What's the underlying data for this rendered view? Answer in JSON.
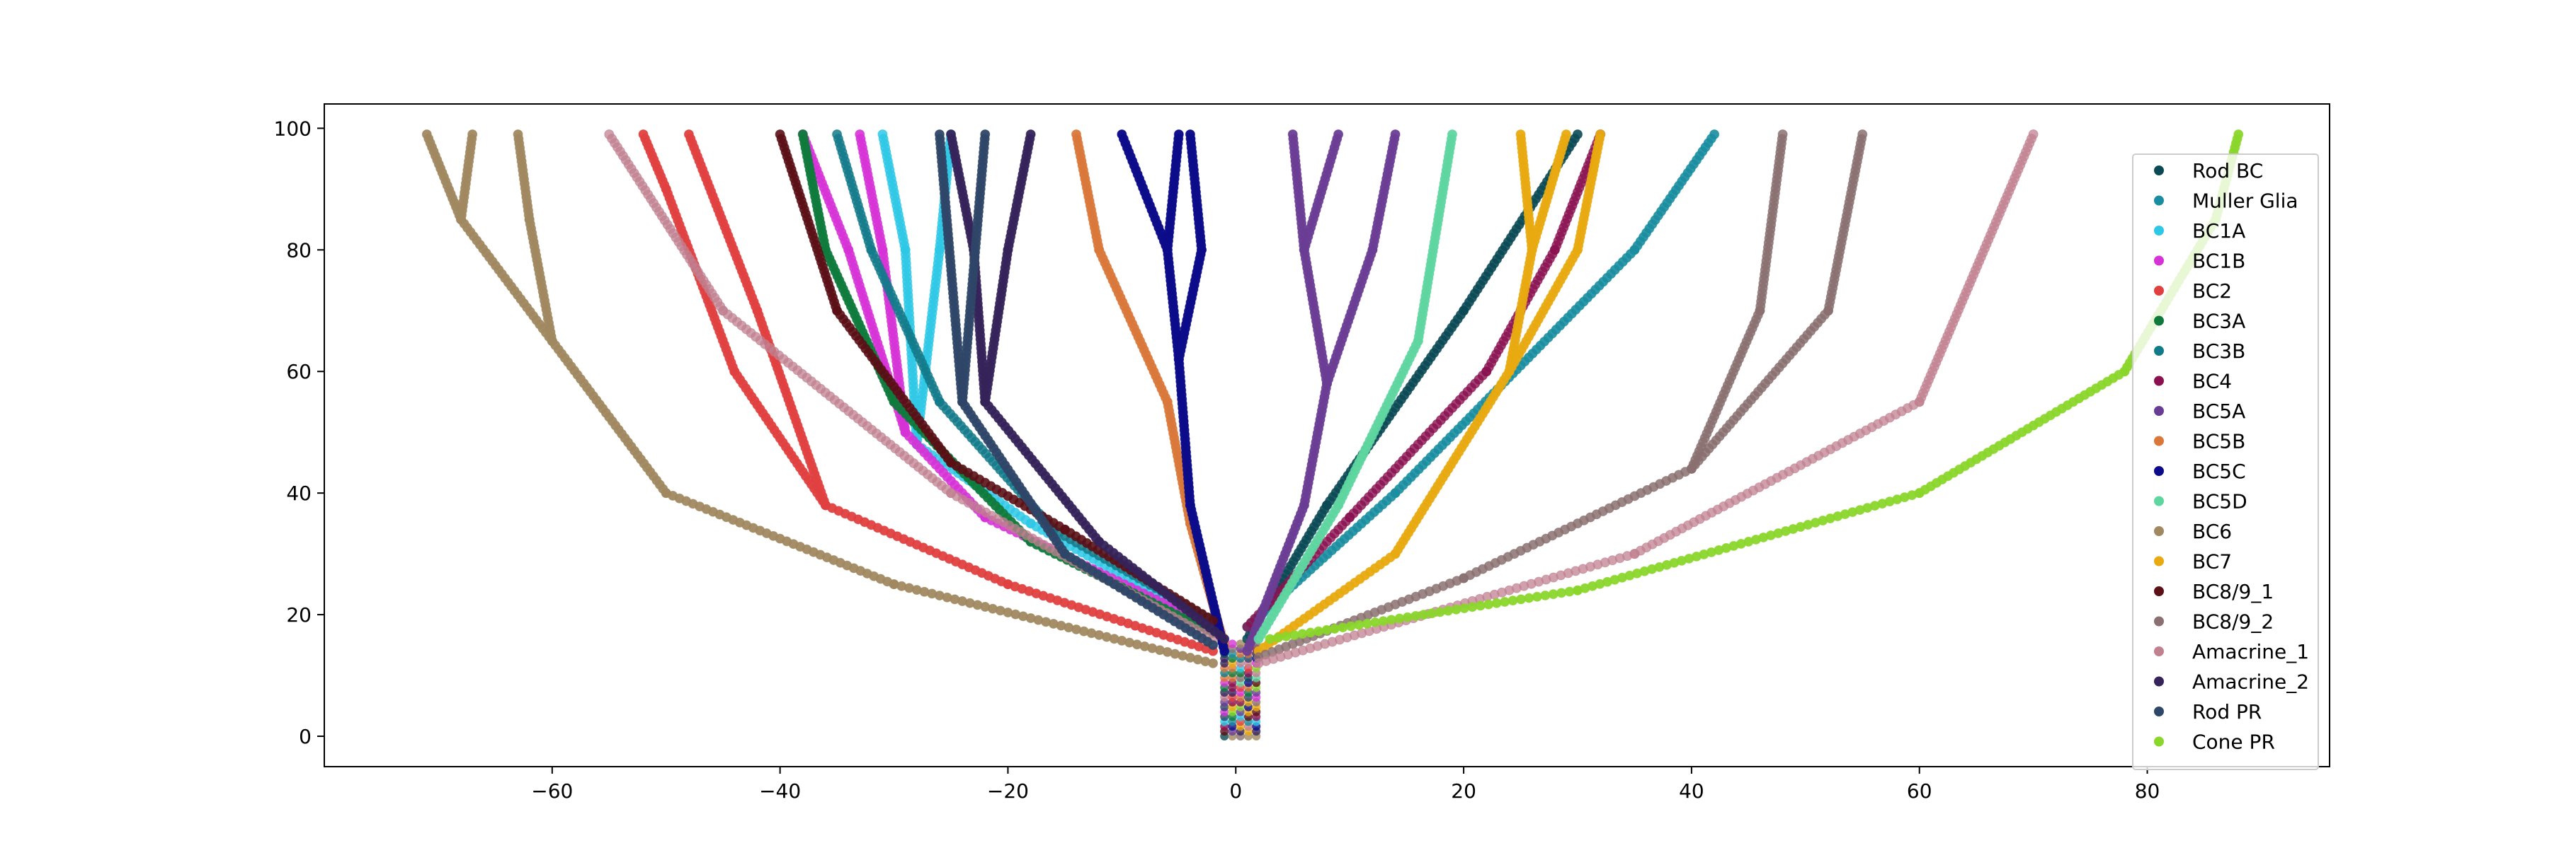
{
  "chart_data": {
    "type": "scatter",
    "title": "",
    "xlabel": "",
    "ylabel": "",
    "xlim": [
      -80,
      96
    ],
    "ylim": [
      -5,
      104
    ],
    "xticks": [
      -60,
      -40,
      -20,
      0,
      20,
      40,
      60,
      80
    ],
    "yticks": [
      0,
      20,
      40,
      60,
      80,
      100
    ],
    "xtick_labels": [
      "−60",
      "−40",
      "−20",
      "0",
      "20",
      "40",
      "60",
      "80"
    ],
    "ytick_labels": [
      "0",
      "20",
      "40",
      "60",
      "80",
      "100"
    ],
    "grid": false,
    "legend_position": "right",
    "trunk": {
      "x_from": -1,
      "x_to": 2,
      "y_from": 0,
      "y_to": 16
    },
    "series": [
      {
        "name": "Rod BC",
        "color": "#0b4a55",
        "alpha": 0.9,
        "branches": [
          [
            [
              1,
              16
            ],
            [
              8,
              38
            ],
            [
              20,
              70
            ],
            [
              30,
              99
            ]
          ]
        ]
      },
      {
        "name": "Muller Glia",
        "color": "#1a8ea0",
        "alpha": 0.9,
        "branches": [
          [
            [
              1,
              18
            ],
            [
              14,
              40
            ],
            [
              35,
              80
            ],
            [
              42,
              99
            ]
          ]
        ]
      },
      {
        "name": "BC1A",
        "color": "#2ec8e6",
        "alpha": 0.85,
        "branches": [
          [
            [
              -2,
              18
            ],
            [
              -18,
              35
            ],
            [
              -28,
              48
            ],
            [
              -29,
              80
            ],
            [
              -31,
              99
            ]
          ],
          [
            [
              -28,
              48
            ],
            [
              -26,
              80
            ],
            [
              -25,
              99
            ]
          ]
        ]
      },
      {
        "name": "BC1B",
        "color": "#d633d6",
        "alpha": 0.9,
        "branches": [
          [
            [
              -2,
              18
            ],
            [
              -22,
              36
            ],
            [
              -29,
              50
            ],
            [
              -34,
              80
            ],
            [
              -38,
              99
            ]
          ],
          [
            [
              -29,
              50
            ],
            [
              -31,
              80
            ],
            [
              -33,
              99
            ]
          ]
        ]
      },
      {
        "name": "BC2",
        "color": "#e04040",
        "alpha": 0.95,
        "branches": [
          [
            [
              -2,
              14
            ],
            [
              -20,
              25
            ],
            [
              -36,
              38
            ],
            [
              -44,
              60
            ],
            [
              -50,
              90
            ],
            [
              -52,
              99
            ]
          ],
          [
            [
              -36,
              38
            ],
            [
              -42,
              70
            ],
            [
              -48,
              99
            ]
          ]
        ]
      },
      {
        "name": "BC3A",
        "color": "#0f7a3c",
        "alpha": 0.95,
        "branches": [
          [
            [
              -2,
              17
            ],
            [
              -18,
              32
            ],
            [
              -30,
              55
            ],
            [
              -36,
              80
            ],
            [
              -38,
              99
            ]
          ]
        ]
      },
      {
        "name": "BC3B",
        "color": "#137a8a",
        "alpha": 0.85,
        "branches": [
          [
            [
              -2,
              19
            ],
            [
              -16,
              34
            ],
            [
              -26,
              55
            ],
            [
              -32,
              80
            ],
            [
              -35,
              99
            ]
          ]
        ]
      },
      {
        "name": "BC4",
        "color": "#8a1050",
        "alpha": 0.8,
        "branches": [
          [
            [
              1,
              18
            ],
            [
              10,
              36
            ],
            [
              22,
              60
            ],
            [
              28,
              80
            ],
            [
              32,
              99
            ]
          ]
        ]
      },
      {
        "name": "BC5A",
        "color": "#6a3d94",
        "alpha": 0.95,
        "branches": [
          [
            [
              1,
              14
            ],
            [
              6,
              38
            ],
            [
              8,
              58
            ],
            [
              6,
              80
            ],
            [
              5,
              99
            ]
          ],
          [
            [
              8,
              58
            ],
            [
              12,
              80
            ],
            [
              14,
              99
            ]
          ],
          [
            [
              6,
              80
            ],
            [
              9,
              99
            ]
          ]
        ]
      },
      {
        "name": "BC5B",
        "color": "#d9783a",
        "alpha": 0.95,
        "branches": [
          [
            [
              -1,
              15
            ],
            [
              -4,
              35
            ],
            [
              -6,
              55
            ],
            [
              -12,
              80
            ],
            [
              -14,
              99
            ]
          ]
        ]
      },
      {
        "name": "BC5C",
        "color": "#0c0c8a",
        "alpha": 0.98,
        "branches": [
          [
            [
              -1,
              14
            ],
            [
              -4,
              38
            ],
            [
              -5,
              62
            ],
            [
              -6,
              80
            ],
            [
              -10,
              99
            ]
          ],
          [
            [
              -5,
              62
            ],
            [
              -3,
              80
            ],
            [
              -4,
              99
            ]
          ],
          [
            [
              -6,
              80
            ],
            [
              -5,
              99
            ]
          ]
        ]
      },
      {
        "name": "BC5D",
        "color": "#5fd6a0",
        "alpha": 0.95,
        "branches": [
          [
            [
              2,
              16
            ],
            [
              9,
              38
            ],
            [
              16,
              65
            ],
            [
              19,
              99
            ]
          ]
        ]
      },
      {
        "name": "BC6",
        "color": "#a08860",
        "alpha": 0.95,
        "branches": [
          [
            [
              -2,
              12
            ],
            [
              -30,
              25
            ],
            [
              -50,
              40
            ],
            [
              -60,
              65
            ],
            [
              -68,
              85
            ],
            [
              -71,
              99
            ]
          ],
          [
            [
              -60,
              65
            ],
            [
              -62,
              85
            ],
            [
              -63,
              99
            ]
          ],
          [
            [
              -68,
              85
            ],
            [
              -67,
              99
            ]
          ]
        ]
      },
      {
        "name": "BC7",
        "color": "#e8aa10",
        "alpha": 0.95,
        "branches": [
          [
            [
              2,
              14
            ],
            [
              14,
              30
            ],
            [
              24,
              60
            ],
            [
              26,
              80
            ],
            [
              25,
              99
            ]
          ],
          [
            [
              24,
              60
            ],
            [
              30,
              80
            ],
            [
              32,
              99
            ]
          ],
          [
            [
              26,
              80
            ],
            [
              29,
              99
            ]
          ]
        ]
      },
      {
        "name": "BC8/9_1",
        "color": "#5a1015",
        "alpha": 0.9,
        "branches": [
          [
            [
              -2,
              19
            ],
            [
              -15,
              34
            ],
            [
              -25,
              45
            ],
            [
              -35,
              70
            ],
            [
              -40,
              99
            ]
          ]
        ]
      },
      {
        "name": "BC8/9_2",
        "color": "#8a7070",
        "alpha": 0.85,
        "branches": [
          [
            [
              2,
              13
            ],
            [
              20,
              26
            ],
            [
              40,
              44
            ],
            [
              46,
              70
            ],
            [
              48,
              99
            ]
          ],
          [
            [
              40,
              44
            ],
            [
              52,
              70
            ],
            [
              55,
              99
            ]
          ]
        ]
      },
      {
        "name": "Amacrine_1",
        "color": "#c08090",
        "alpha": 0.75,
        "branches": [
          [
            [
              -2,
              16
            ],
            [
              -25,
              40
            ],
            [
              -45,
              70
            ],
            [
              -55,
              99
            ]
          ],
          [
            [
              2,
              12
            ],
            [
              35,
              30
            ],
            [
              60,
              55
            ],
            [
              70,
              99
            ]
          ]
        ]
      },
      {
        "name": "Amacrine_2",
        "color": "#35235a",
        "alpha": 0.95,
        "branches": [
          [
            [
              -1,
              16
            ],
            [
              -12,
              32
            ],
            [
              -22,
              55
            ],
            [
              -23,
              80
            ],
            [
              -25,
              99
            ]
          ],
          [
            [
              -22,
              55
            ],
            [
              -20,
              80
            ],
            [
              -18,
              99
            ]
          ]
        ]
      },
      {
        "name": "Rod PR",
        "color": "#2e4668",
        "alpha": 0.95,
        "branches": [
          [
            [
              -2,
              15
            ],
            [
              -15,
              30
            ],
            [
              -24,
              55
            ],
            [
              -26,
              99
            ]
          ],
          [
            [
              -24,
              55
            ],
            [
              -22,
              99
            ]
          ]
        ]
      },
      {
        "name": "Cone PR",
        "color": "#8ad62a",
        "alpha": 0.95,
        "branches": [
          [
            [
              3,
              16
            ],
            [
              30,
              24
            ],
            [
              60,
              40
            ],
            [
              78,
              60
            ],
            [
              86,
              85
            ],
            [
              88,
              99
            ]
          ]
        ]
      }
    ]
  }
}
